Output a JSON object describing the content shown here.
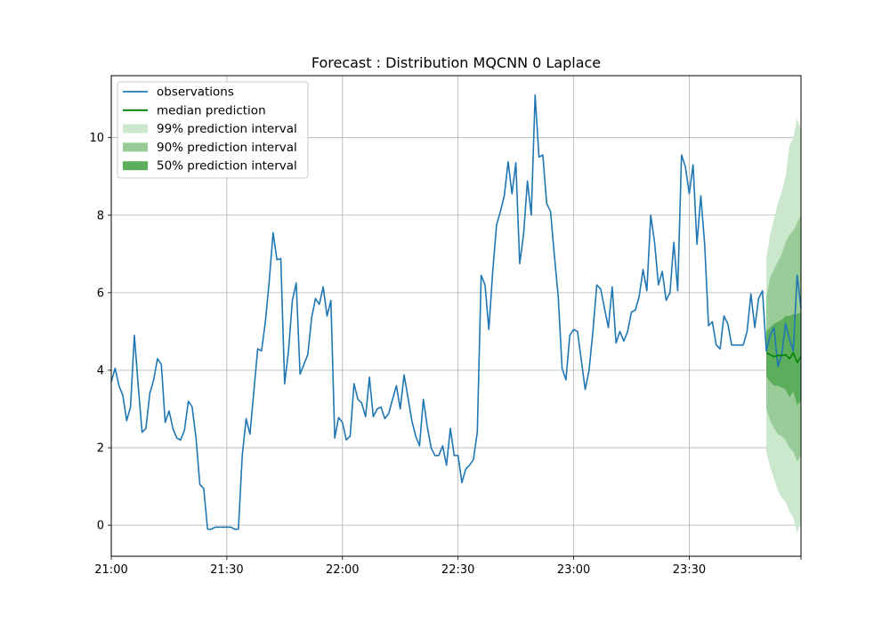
{
  "chart_data": {
    "type": "line",
    "title": "Forecast : Distribution MQCNN 0 Laplace",
    "xlabel": "",
    "ylabel": "",
    "x_unit": "minutes",
    "x_start": "21:00",
    "x_step_minutes": 1.5,
    "xlim": [
      0,
      179
    ],
    "ylim": [
      -0.8,
      11.6
    ],
    "grid": true,
    "legend_position": "top-left",
    "x_ticks": [
      {
        "value": 0,
        "label": "21:00"
      },
      {
        "value": 30,
        "label": "21:30"
      },
      {
        "value": 60,
        "label": "22:00"
      },
      {
        "value": 90,
        "label": "22:30"
      },
      {
        "value": 120,
        "label": "23:00"
      },
      {
        "value": 150,
        "label": "23:30"
      },
      {
        "value": 179,
        "label": ""
      }
    ],
    "y_ticks": [
      0,
      2,
      4,
      6,
      8,
      10
    ],
    "legend": [
      {
        "label": "observations",
        "kind": "line",
        "color": "#1f77b4"
      },
      {
        "label": "median prediction",
        "kind": "line",
        "color": "#008000"
      },
      {
        "label": "99% prediction interval",
        "kind": "band",
        "color": "#cce8cc"
      },
      {
        "label": "90% prediction interval",
        "kind": "band",
        "color": "#99cc99"
      },
      {
        "label": "50% prediction interval",
        "kind": "band",
        "color": "#5cad5c"
      }
    ],
    "observations": {
      "name": "observations",
      "color": "#1f77b4",
      "values": [
        3.7,
        4.05,
        3.6,
        3.35,
        2.7,
        3.05,
        4.9,
        3.6,
        2.4,
        2.5,
        3.4,
        3.75,
        4.3,
        4.15,
        2.65,
        2.95,
        2.5,
        2.25,
        2.2,
        2.45,
        3.2,
        3.05,
        2.25,
        1.05,
        0.95,
        -0.1,
        -0.1,
        -0.05,
        -0.05,
        -0.05,
        -0.05,
        -0.05,
        -0.1,
        -0.1,
        1.8,
        2.75,
        2.35,
        3.45,
        4.55,
        4.5,
        5.25,
        6.3,
        7.55,
        6.85,
        6.88,
        3.65,
        4.5,
        5.8,
        6.25,
        3.9,
        4.15,
        4.4,
        5.35,
        5.85,
        5.7,
        6.15,
        5.4,
        5.8,
        2.25,
        2.78,
        2.65,
        2.2,
        2.3,
        3.65,
        3.25,
        3.15,
        2.8,
        3.82,
        2.8,
        3.0,
        3.05,
        2.75,
        2.88,
        3.25,
        3.6,
        3.0,
        3.88,
        3.3,
        2.7,
        2.3,
        2.05,
        3.25,
        2.55,
        2.0,
        1.8,
        1.8,
        2.05,
        1.55,
        2.5,
        1.8,
        1.8,
        1.1,
        1.45,
        1.55,
        1.7,
        2.4,
        6.45,
        6.2,
        5.05,
        6.55,
        7.75,
        8.1,
        8.5,
        9.38,
        8.55,
        9.35,
        6.75,
        7.5,
        8.88,
        8.0,
        11.1,
        9.5,
        9.55,
        8.3,
        8.1,
        6.95,
        5.9,
        4.05,
        3.75,
        4.9,
        5.05,
        5.0,
        4.25,
        3.5,
        4.0,
        5.0,
        6.2,
        6.1,
        5.6,
        5.1,
        6.15,
        4.7,
        5.0,
        4.75,
        5.0,
        5.5,
        5.55,
        5.9,
        6.6,
        6.05,
        8.0,
        7.3,
        6.2,
        6.55,
        5.8,
        6.0,
        7.3,
        6.05,
        9.55,
        9.25,
        8.55,
        9.3,
        7.25,
        8.5,
        7.25,
        5.15,
        5.25,
        4.65,
        4.55,
        5.4,
        5.2,
        4.65,
        4.65,
        4.65,
        4.65,
        5.0,
        5.97,
        5.1,
        5.85,
        6.05,
        4.5,
        4.9,
        5.1,
        4.1,
        4.4,
        5.2,
        4.8,
        4.5,
        6.45,
        5.6
      ]
    },
    "forecast": {
      "x_start": 170,
      "x_end": 179,
      "median": [
        4.45,
        4.4,
        4.35,
        4.38,
        4.38,
        4.4,
        4.3,
        4.45,
        4.2,
        4.35
      ],
      "p50_low": [
        3.85,
        3.7,
        3.6,
        3.6,
        3.55,
        3.5,
        3.3,
        3.45,
        3.1,
        3.2
      ],
      "p50_high": [
        5.0,
        5.1,
        5.2,
        5.25,
        5.3,
        5.4,
        5.4,
        5.45,
        5.45,
        5.5
      ],
      "p90_low": [
        3.0,
        2.7,
        2.5,
        2.35,
        2.3,
        2.2,
        2.0,
        1.9,
        1.65,
        1.8
      ],
      "p90_high": [
        5.9,
        6.4,
        6.6,
        6.8,
        7.0,
        7.3,
        7.5,
        7.6,
        7.8,
        8.0
      ],
      "p99_low": [
        1.9,
        1.5,
        1.2,
        0.9,
        0.7,
        0.6,
        0.35,
        0.2,
        -0.2,
        0.1
      ],
      "p99_high": [
        6.9,
        7.5,
        7.9,
        8.3,
        8.6,
        9.0,
        9.8,
        10.0,
        10.5,
        10.2
      ]
    }
  }
}
